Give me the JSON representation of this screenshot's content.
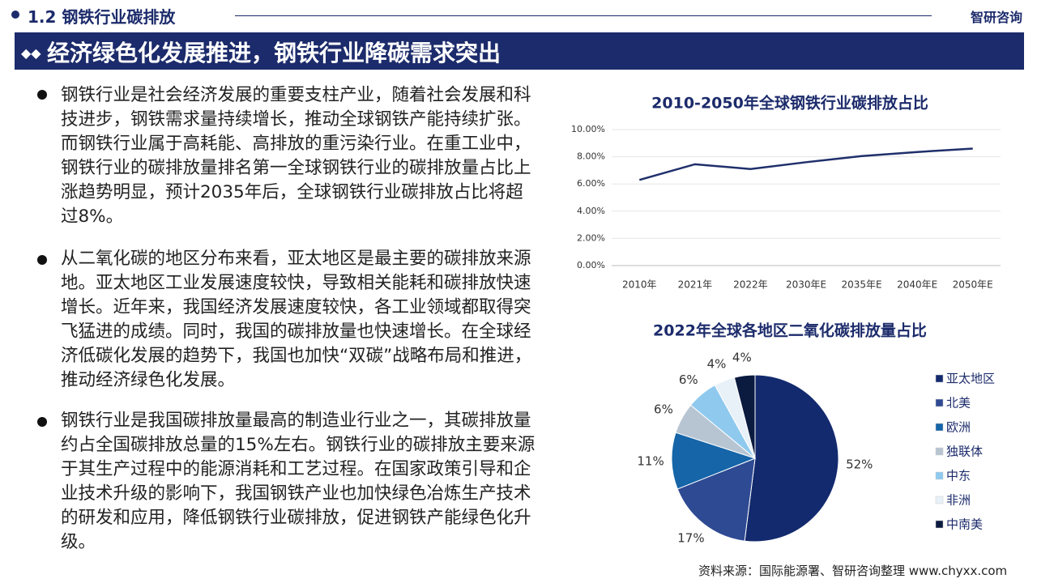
{
  "header": {
    "section": "1.2 钢铁行业碳排放",
    "logo": "智研咨询",
    "title": "经济绿色化发展推进，钢铁行业降碳需求突出"
  },
  "paragraphs": [
    "钢铁行业是社会经济发展的重要支柱产业，随着社会发展和科技进步，钢铁需求量持续增长，推动全球钢铁产能持续扩张。而钢铁行业属于高耗能、高排放的重污染行业。在重工业中，钢铁行业的碳排放量排名第一全球钢铁行业的碳排放量占比上涨趋势明显，预计2035年后，全球钢铁行业碳排放占比将超过8%。",
    "从二氧化碳的地区分布来看，亚太地区是最主要的碳排放来源地。亚太地区工业发展速度较快，导致相关能耗和碳排放快速增长。近年来，我国经济发展速度较快，各工业领域都取得突飞猛进的成绩。同时，我国的碳排放量也快速增长。在全球经济低碳化发展的趋势下，我国也加快“双碳”战略布局和推进，推动经济绿色化发展。",
    "钢铁行业是我国碳排放量最高的制造业行业之一，其碳排放量约占全国碳排放总量的15%左右。钢铁行业的碳排放主要来源于其生产过程中的能源消耗和工艺过程。在国家政策引导和企业技术升级的影响下，我国钢铁产业也加快绿色冶炼生产技术的研发和应用，降低钢铁行业碳排放，促进钢铁产能绿色化升级。"
  ],
  "chart_data": [
    {
      "type": "line",
      "title": "2010-2050年全球钢铁行业碳排放占比",
      "categories": [
        "2010年",
        "2021年",
        "2022年",
        "2030年E",
        "2035年E",
        "2040年E",
        "2050年E"
      ],
      "values": [
        6.3,
        7.45,
        7.1,
        7.6,
        8.05,
        8.35,
        8.6
      ],
      "color": "#1f2f6b",
      "ylim": [
        0,
        10
      ],
      "yticks": [
        {
          "value": 0,
          "label": "0.00%"
        },
        {
          "value": 2,
          "label": "2.00%"
        },
        {
          "value": 4,
          "label": "4.00%"
        },
        {
          "value": 6,
          "label": "6.00%"
        },
        {
          "value": 8,
          "label": "8.00%"
        },
        {
          "value": 10,
          "label": "10.00%"
        }
      ],
      "grid": true
    },
    {
      "type": "pie",
      "title": "2022年全球各地区二氧化碳排放量占比",
      "categories": [
        "亚太地区",
        "北美",
        "欧洲",
        "独联体",
        "中东",
        "非洲",
        "中南美"
      ],
      "values": [
        52,
        17,
        11,
        6,
        6,
        4,
        4
      ],
      "value_labels": [
        "52%",
        "17%",
        "11%",
        "6%",
        "6%",
        "4%",
        "4%"
      ],
      "colors": [
        "#132a6e",
        "#2e4a93",
        "#1565a8",
        "#b7c5d3",
        "#8fc9ee",
        "#e8f1f8",
        "#0b1a3f"
      ]
    }
  ],
  "source": "资料来源：国际能源署、智研咨询整理 www.chyxx.com"
}
